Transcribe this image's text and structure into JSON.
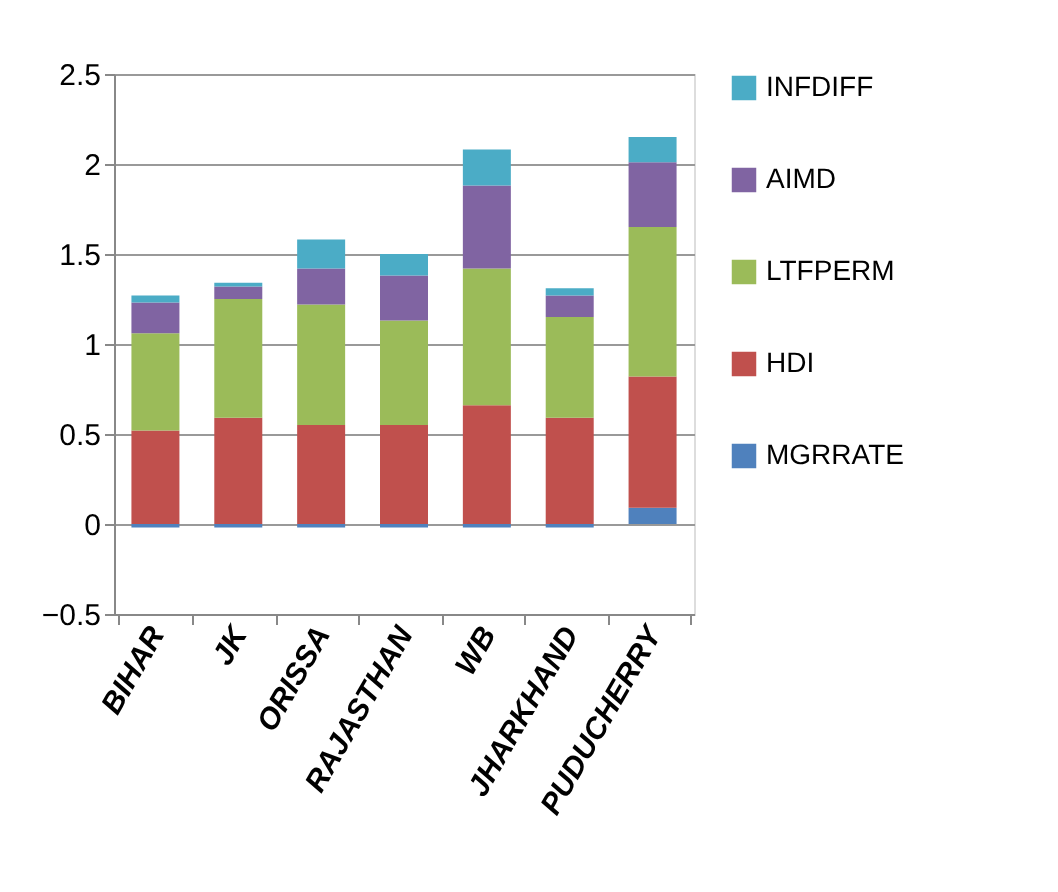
{
  "chart_data": {
    "type": "bar",
    "stacked": true,
    "categories": [
      "BIHAR",
      "JK",
      "ORISSA",
      "RAJASTHAN",
      "WB",
      "JHARKHAND",
      "PUDUCHERRY"
    ],
    "series": [
      {
        "name": "MGRRATE",
        "color": "#4f81bd",
        "values": [
          -0.02,
          -0.02,
          -0.02,
          -0.02,
          -0.02,
          -0.02,
          0.09
        ]
      },
      {
        "name": "HDI",
        "color": "#c0504d",
        "values": [
          0.52,
          0.59,
          0.55,
          0.55,
          0.66,
          0.59,
          0.73
        ]
      },
      {
        "name": "LTFPERM",
        "color": "#9bbb59",
        "values": [
          0.54,
          0.66,
          0.67,
          0.58,
          0.76,
          0.56,
          0.83
        ]
      },
      {
        "name": "AIMD",
        "color": "#8064a2",
        "values": [
          0.17,
          0.07,
          0.2,
          0.25,
          0.46,
          0.12,
          0.36
        ]
      },
      {
        "name": "INFDIFF",
        "color": "#4bacc6",
        "values": [
          0.04,
          0.02,
          0.16,
          0.12,
          0.2,
          0.04,
          0.14
        ]
      }
    ],
    "ylim": [
      -0.5,
      2.5
    ],
    "yticks": [
      -0.5,
      0,
      0.5,
      1,
      1.5,
      2,
      2.5
    ],
    "grid": "y",
    "legend": "right"
  }
}
